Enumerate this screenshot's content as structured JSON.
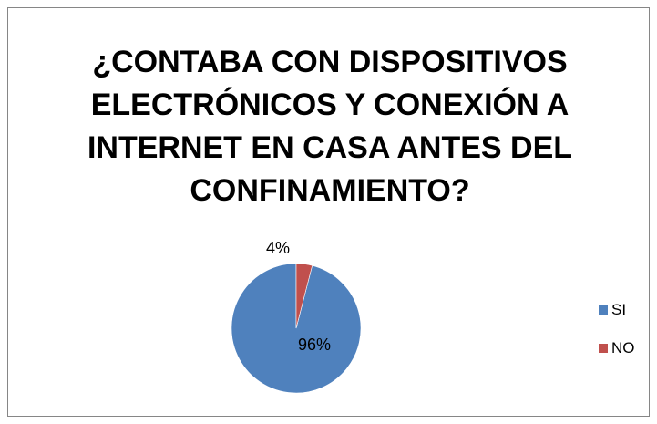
{
  "chart_data": {
    "type": "pie",
    "title": "¿CONTABA CON DISPOSITIVOS ELECTRÓNICOS Y CONEXIÓN A INTERNET EN CASA ANTES DEL CONFINAMIENTO?",
    "categories": [
      "SI",
      "NO"
    ],
    "values": [
      96,
      4
    ],
    "data_labels": [
      "96%",
      "4%"
    ],
    "colors": [
      "#4F81BD",
      "#C0504D"
    ],
    "legend_position": "right"
  }
}
